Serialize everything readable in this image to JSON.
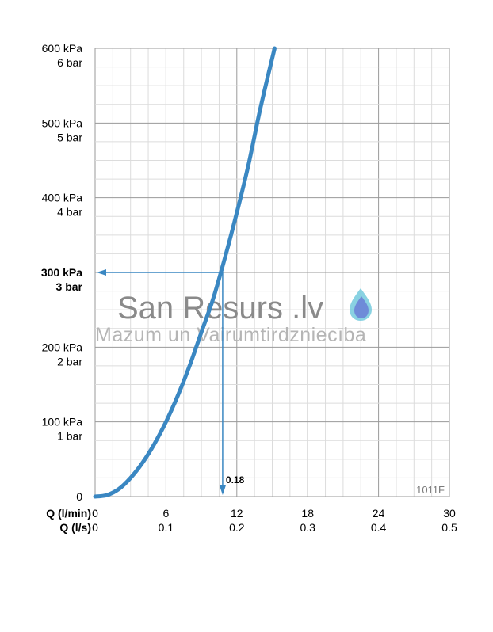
{
  "chart_data": {
    "type": "line",
    "title": "",
    "x_axis_rows": [
      {
        "label": "Q (l/min)",
        "ticks": [
          "0",
          "6",
          "12",
          "18",
          "24",
          "30"
        ]
      },
      {
        "label": "Q (l/s)",
        "ticks": [
          "0",
          "0.1",
          "0.2",
          "0.3",
          "0.4",
          "0.5"
        ]
      }
    ],
    "y_ticks": [
      {
        "kpa": "0",
        "bar": ""
      },
      {
        "kpa": "100 kPa",
        "bar": "1 bar"
      },
      {
        "kpa": "200 kPa",
        "bar": "2 bar"
      },
      {
        "kpa": "300 kPa",
        "bar": "3 bar",
        "bold": true
      },
      {
        "kpa": "400 kPa",
        "bar": "4 bar"
      },
      {
        "kpa": "500 kPa",
        "bar": "5 bar"
      },
      {
        "kpa": "600 kPa",
        "bar": "6 bar"
      }
    ],
    "xlim": [
      0,
      30
    ],
    "ylim": [
      0,
      600
    ],
    "grid": true,
    "series": [
      {
        "x": [
          0,
          1,
          2,
          3,
          4,
          5,
          6,
          7,
          8,
          9,
          10,
          11,
          12,
          13,
          14,
          15.2
        ],
        "y": [
          0,
          2,
          10,
          25,
          45,
          70,
          100,
          135,
          175,
          220,
          265,
          320,
          380,
          445,
          520,
          600
        ],
        "color": "#3a87c2"
      }
    ],
    "operating_point": {
      "x": 10.8,
      "y": 300,
      "label": "0.18"
    },
    "annotation_color": "#3a87c2",
    "code_label": "1011F"
  },
  "watermark": {
    "title": "San Resurs .lv",
    "subtitle": "Mazum un Vairumtirdzniecība"
  }
}
